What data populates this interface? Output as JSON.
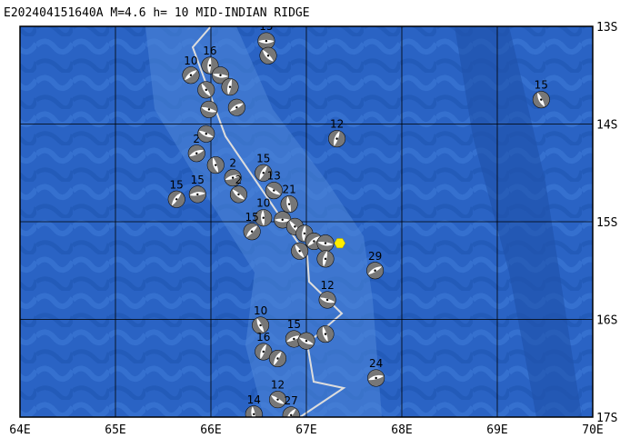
{
  "map": {
    "title": "E202404151640A  M=4.6  h= 10  MID-INDIAN RIDGE",
    "xlim": [
      64,
      70
    ],
    "ylim": [
      -17,
      -13
    ],
    "xticks": [
      {
        "value": 64,
        "label": "64E"
      },
      {
        "value": 65,
        "label": "65E"
      },
      {
        "value": 66,
        "label": "66E"
      },
      {
        "value": 67,
        "label": "67E"
      },
      {
        "value": 68,
        "label": "68E"
      },
      {
        "value": 69,
        "label": "69E"
      },
      {
        "value": 70,
        "label": "70E"
      }
    ],
    "yticks": [
      {
        "value": -13,
        "label": "13S"
      },
      {
        "value": -14,
        "label": "14S"
      },
      {
        "value": -15,
        "label": "15S"
      },
      {
        "value": -16,
        "label": "16S"
      },
      {
        "value": -17,
        "label": "17S"
      }
    ],
    "grid": true,
    "epicenter": {
      "lon": 67.35,
      "lat": -15.22,
      "color": "#ffee00"
    },
    "events": [
      {
        "lon": 66.58,
        "lat": -13.15,
        "depth": 15
      },
      {
        "lon": 66.6,
        "lat": -13.3,
        "depth": null
      },
      {
        "lon": 65.99,
        "lat": -13.4,
        "depth": 16
      },
      {
        "lon": 65.79,
        "lat": -13.5,
        "depth": 10
      },
      {
        "lon": 66.1,
        "lat": -13.5,
        "depth": null
      },
      {
        "lon": 65.95,
        "lat": -13.65,
        "depth": null
      },
      {
        "lon": 66.2,
        "lat": -13.62,
        "depth": null
      },
      {
        "lon": 66.27,
        "lat": -13.83,
        "depth": null
      },
      {
        "lon": 65.98,
        "lat": -13.85,
        "depth": null
      },
      {
        "lon": 69.46,
        "lat": -13.75,
        "depth": 15
      },
      {
        "lon": 67.32,
        "lat": -14.15,
        "depth": 12
      },
      {
        "lon": 65.85,
        "lat": -14.3,
        "depth": 2
      },
      {
        "lon": 65.95,
        "lat": -14.1,
        "depth": null
      },
      {
        "lon": 66.05,
        "lat": -14.42,
        "depth": null
      },
      {
        "lon": 66.55,
        "lat": -14.5,
        "depth": 15
      },
      {
        "lon": 66.23,
        "lat": -14.55,
        "depth": 2
      },
      {
        "lon": 66.66,
        "lat": -14.68,
        "depth": 13
      },
      {
        "lon": 66.82,
        "lat": -14.82,
        "depth": 21
      },
      {
        "lon": 65.64,
        "lat": -14.77,
        "depth": 15
      },
      {
        "lon": 65.86,
        "lat": -14.72,
        "depth": 15
      },
      {
        "lon": 66.29,
        "lat": -14.72,
        "depth": 2
      },
      {
        "lon": 66.55,
        "lat": -14.96,
        "depth": 10
      },
      {
        "lon": 66.43,
        "lat": -15.1,
        "depth": 15
      },
      {
        "lon": 66.75,
        "lat": -14.98,
        "depth": null
      },
      {
        "lon": 66.88,
        "lat": -15.05,
        "depth": null
      },
      {
        "lon": 66.98,
        "lat": -15.12,
        "depth": null
      },
      {
        "lon": 67.08,
        "lat": -15.2,
        "depth": null
      },
      {
        "lon": 67.2,
        "lat": -15.22,
        "depth": null
      },
      {
        "lon": 66.93,
        "lat": -15.3,
        "depth": null
      },
      {
        "lon": 67.2,
        "lat": -15.38,
        "depth": null
      },
      {
        "lon": 67.72,
        "lat": -15.5,
        "depth": 29
      },
      {
        "lon": 67.22,
        "lat": -15.8,
        "depth": 12
      },
      {
        "lon": 66.52,
        "lat": -16.06,
        "depth": 10
      },
      {
        "lon": 66.55,
        "lat": -16.33,
        "depth": 16
      },
      {
        "lon": 66.87,
        "lat": -16.2,
        "depth": 15
      },
      {
        "lon": 67.0,
        "lat": -16.22,
        "depth": null
      },
      {
        "lon": 67.2,
        "lat": -16.15,
        "depth": null
      },
      {
        "lon": 66.7,
        "lat": -16.4,
        "depth": null
      },
      {
        "lon": 67.73,
        "lat": -16.6,
        "depth": 24
      },
      {
        "lon": 66.7,
        "lat": -16.82,
        "depth": 12
      },
      {
        "lon": 66.45,
        "lat": -16.97,
        "depth": 14
      },
      {
        "lon": 66.84,
        "lat": -16.98,
        "depth": 27
      }
    ]
  }
}
